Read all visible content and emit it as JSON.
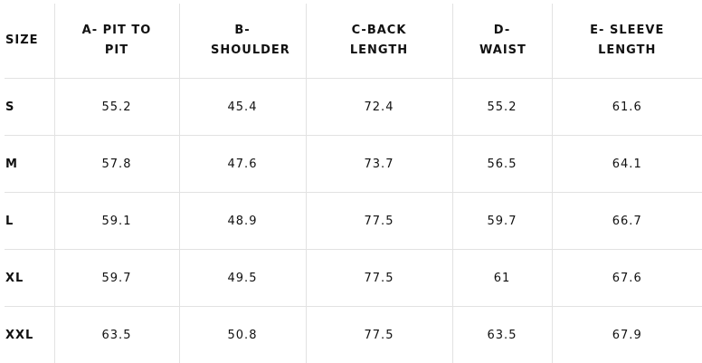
{
  "table": {
    "headers": [
      "SIZE",
      "A- PIT TO PIT",
      "B- SHOULDER",
      "C-BACK LENGTH",
      "D- WAIST",
      "E- SLEEVE LENGTH"
    ],
    "rows": [
      [
        "S",
        55.2,
        45.4,
        72.4,
        55.2,
        61.6
      ],
      [
        "M",
        57.8,
        47.6,
        73.7,
        56.5,
        64.1
      ],
      [
        "L",
        59.1,
        48.9,
        77.5,
        59.7,
        66.7
      ],
      [
        "XL",
        59.7,
        49.5,
        77.5,
        61,
        67.6
      ],
      [
        "XXL",
        63.5,
        50.8,
        77.5,
        63.5,
        67.9
      ]
    ]
  }
}
